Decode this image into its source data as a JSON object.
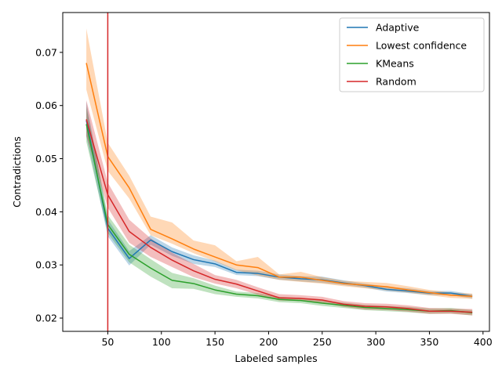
{
  "chart_data": {
    "type": "line",
    "title": "",
    "xlabel": "Labeled samples",
    "ylabel": "Contradictions",
    "xlim": [
      8,
      406
    ],
    "ylim": [
      0.0175,
      0.0775
    ],
    "xticks": [
      50,
      100,
      150,
      200,
      250,
      300,
      350,
      400
    ],
    "xtick_labels": [
      "50",
      "100",
      "150",
      "200",
      "250",
      "300",
      "350",
      "400"
    ],
    "yticks": [
      0.02,
      0.03,
      0.04,
      0.05,
      0.06,
      0.07
    ],
    "ytick_labels": [
      "0.02",
      "0.03",
      "0.04",
      "0.05",
      "0.06",
      "0.07"
    ],
    "grid": false,
    "legend_position": "top-right",
    "vline": {
      "x": 50,
      "color": "#d62728"
    },
    "x": [
      30,
      50,
      70,
      90,
      110,
      130,
      150,
      170,
      190,
      210,
      230,
      250,
      270,
      290,
      310,
      330,
      350,
      370,
      390
    ],
    "series": [
      {
        "name": "Adaptive",
        "color": "#1f77b4",
        "values": [
          0.0572,
          0.0369,
          0.0312,
          0.0347,
          0.0325,
          0.031,
          0.0302,
          0.0286,
          0.0284,
          0.0277,
          0.0274,
          0.0272,
          0.0266,
          0.0261,
          0.0254,
          0.0251,
          0.0247,
          0.0247,
          0.0241
        ],
        "lower": [
          0.0542,
          0.0354,
          0.0299,
          0.0338,
          0.0317,
          0.0302,
          0.0296,
          0.0281,
          0.0279,
          0.0272,
          0.0269,
          0.0266,
          0.0262,
          0.0257,
          0.025,
          0.0247,
          0.0243,
          0.0243,
          0.0237
        ],
        "upper": [
          0.0608,
          0.0386,
          0.0326,
          0.0356,
          0.0333,
          0.0318,
          0.0308,
          0.0291,
          0.0289,
          0.0282,
          0.0279,
          0.0278,
          0.0271,
          0.0265,
          0.0259,
          0.0256,
          0.0251,
          0.0251,
          0.0245
        ]
      },
      {
        "name": "Lowest confidence",
        "color": "#ff7f0e",
        "values": [
          0.068,
          0.0504,
          0.0445,
          0.0367,
          0.0349,
          0.033,
          0.0315,
          0.03,
          0.0295,
          0.0277,
          0.0277,
          0.0271,
          0.0265,
          0.0262,
          0.0259,
          0.0253,
          0.0248,
          0.0243,
          0.0241
        ],
        "lower": [
          0.063,
          0.0477,
          0.0425,
          0.0356,
          0.034,
          0.0322,
          0.0307,
          0.029,
          0.028,
          0.0272,
          0.0268,
          0.0265,
          0.026,
          0.0256,
          0.0252,
          0.0248,
          0.0243,
          0.0238,
          0.0236
        ],
        "upper": [
          0.0745,
          0.053,
          0.0468,
          0.0391,
          0.038,
          0.0346,
          0.0337,
          0.0307,
          0.0315,
          0.0282,
          0.0287,
          0.0277,
          0.027,
          0.0268,
          0.0266,
          0.026,
          0.0253,
          0.0248,
          0.0246
        ]
      },
      {
        "name": "KMeans",
        "color": "#2ca02c",
        "values": [
          0.0565,
          0.0376,
          0.032,
          0.0294,
          0.0271,
          0.0265,
          0.0253,
          0.0245,
          0.0242,
          0.0235,
          0.0233,
          0.0228,
          0.0224,
          0.022,
          0.0218,
          0.0216,
          0.0213,
          0.0214,
          0.021
        ],
        "lower": [
          0.0532,
          0.036,
          0.0305,
          0.0278,
          0.0256,
          0.0255,
          0.0245,
          0.024,
          0.0237,
          0.023,
          0.0228,
          0.0223,
          0.0219,
          0.0215,
          0.0213,
          0.0211,
          0.0208,
          0.0209,
          0.0205
        ],
        "upper": [
          0.0598,
          0.0394,
          0.0338,
          0.0311,
          0.0285,
          0.0275,
          0.0261,
          0.025,
          0.0247,
          0.024,
          0.0238,
          0.0233,
          0.0229,
          0.0225,
          0.0223,
          0.0221,
          0.0218,
          0.0219,
          0.0215
        ]
      },
      {
        "name": "Random",
        "color": "#d62728",
        "values": [
          0.0574,
          0.0432,
          0.0363,
          0.0333,
          0.0309,
          0.0289,
          0.0273,
          0.0264,
          0.0251,
          0.0238,
          0.0237,
          0.0234,
          0.0226,
          0.0222,
          0.0221,
          0.0218,
          0.0213,
          0.0213,
          0.0211
        ],
        "lower": [
          0.0543,
          0.0408,
          0.0342,
          0.0315,
          0.0296,
          0.0277,
          0.0265,
          0.0256,
          0.0244,
          0.0233,
          0.0232,
          0.0229,
          0.0221,
          0.0216,
          0.0215,
          0.0212,
          0.0208,
          0.0208,
          0.0205
        ],
        "upper": [
          0.061,
          0.0455,
          0.0385,
          0.035,
          0.0323,
          0.0302,
          0.0281,
          0.0272,
          0.0258,
          0.0245,
          0.0243,
          0.024,
          0.0232,
          0.0228,
          0.0227,
          0.0224,
          0.0219,
          0.0218,
          0.0217
        ]
      }
    ]
  }
}
